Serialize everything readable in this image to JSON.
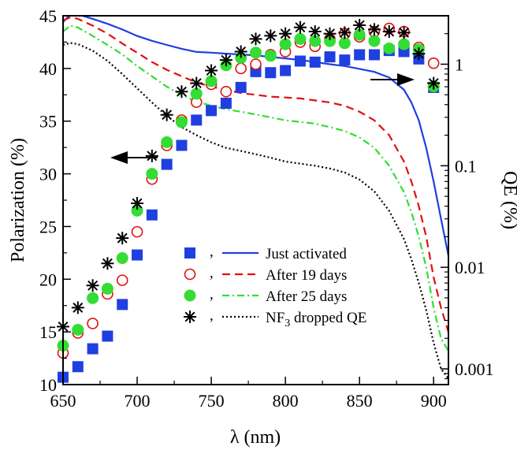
{
  "chart_data": {
    "type": "scatter",
    "xlabel": "λ (nm)",
    "ylabel_left": "Polarization (%)",
    "ylabel_right": "QE (%)",
    "xlim": [
      650,
      910
    ],
    "ylim_left": [
      10,
      45
    ],
    "ylim_right": [
      0.0007,
      3
    ],
    "right_axis_scale": "log",
    "x_ticks": [
      650,
      700,
      750,
      800,
      850,
      900
    ],
    "y_left_ticks": [
      10,
      15,
      20,
      25,
      30,
      35,
      40,
      45
    ],
    "y_right_ticks": [
      {
        "value": 0.001,
        "label": "0.001"
      },
      {
        "value": 0.01,
        "label": "0.01"
      },
      {
        "value": 0.1,
        "label": "0.1"
      },
      {
        "value": 1,
        "label": "1"
      }
    ],
    "legend": {
      "placement": "lower-right",
      "entries": [
        {
          "marker": "filled-square",
          "line": "solid",
          "separator": ",",
          "label": "Just activated"
        },
        {
          "marker": "open-circle",
          "line": "dashed",
          "separator": ",",
          "label": "After 19 days"
        },
        {
          "marker": "filled-circle",
          "line": "dash-dot",
          "separator": ",",
          "label": "After 25 days"
        },
        {
          "marker": "asterisk",
          "line": "dotted",
          "separator": ",",
          "label": "NF",
          "label_sub": "3",
          "label_suffix": " dropped QE"
        }
      ]
    },
    "annotations": [
      {
        "type": "arrow",
        "direction": "left",
        "meaning": "polarization points use left axis"
      },
      {
        "type": "arrow",
        "direction": "right",
        "meaning": "QE curves use right axis"
      }
    ],
    "polarization_series": [
      {
        "color": "#1f3fe0",
        "marker": "filled-square",
        "x": [
          650,
          660,
          670,
          680,
          690,
          700,
          710,
          720,
          730,
          740,
          750,
          760,
          770,
          780,
          790,
          800,
          810,
          820,
          830,
          840,
          850,
          860,
          870,
          880,
          890,
          900
        ],
        "y": [
          10.7,
          11.7,
          13.4,
          14.6,
          17.6,
          22.3,
          26.1,
          30.9,
          32.7,
          35.1,
          36.0,
          36.7,
          38.2,
          39.7,
          39.6,
          39.8,
          40.7,
          40.6,
          41.1,
          40.8,
          41.3,
          41.3,
          41.7,
          41.6,
          40.9,
          38.2
        ]
      },
      {
        "color": "#e01010",
        "marker": "open-circle",
        "x": [
          650,
          660,
          670,
          680,
          690,
          700,
          710,
          720,
          730,
          740,
          750,
          760,
          770,
          780,
          790,
          800,
          810,
          820,
          830,
          840,
          850,
          860,
          870,
          880,
          890,
          900
        ],
        "y": [
          13.0,
          14.9,
          15.8,
          18.6,
          19.9,
          24.5,
          29.5,
          32.7,
          35.1,
          36.8,
          38.5,
          37.8,
          40.0,
          40.4,
          41.3,
          41.6,
          42.5,
          42.1,
          42.8,
          43.3,
          43.0,
          43.5,
          43.8,
          43.5,
          42.0,
          40.5
        ]
      },
      {
        "color": "#33dd33",
        "marker": "filled-circle",
        "x": [
          650,
          660,
          670,
          680,
          690,
          700,
          710,
          720,
          730,
          740,
          750,
          760,
          770,
          780,
          790,
          800,
          810,
          820,
          830,
          840,
          850,
          860,
          870,
          880,
          890,
          900
        ],
        "y": [
          13.7,
          15.2,
          18.2,
          19.1,
          22.0,
          26.5,
          30.0,
          33.0,
          34.9,
          37.6,
          38.8,
          40.3,
          41.0,
          41.5,
          41.2,
          42.3,
          42.8,
          42.6,
          42.6,
          42.4,
          43.2,
          42.6,
          41.9,
          42.3,
          41.8,
          38.3
        ]
      },
      {
        "color": "#000000",
        "marker": "asterisk",
        "x": [
          650,
          660,
          670,
          680,
          690,
          700,
          710,
          720,
          730,
          740,
          750,
          760,
          770,
          780,
          790,
          800,
          810,
          820,
          830,
          840,
          850,
          860,
          870,
          880,
          890,
          900
        ],
        "y": [
          15.5,
          17.3,
          19.4,
          21.5,
          23.9,
          27.2,
          31.7,
          35.6,
          37.8,
          38.6,
          39.8,
          40.8,
          41.6,
          42.8,
          43.1,
          43.3,
          43.9,
          43.5,
          43.3,
          43.4,
          44.1,
          43.7,
          43.5,
          43.4,
          41.4,
          38.6
        ]
      }
    ],
    "qe_series": [
      {
        "color": "#1f3fe0",
        "line": "solid",
        "x": [
          650,
          655,
          660,
          670,
          680,
          690,
          700,
          710,
          720,
          730,
          740,
          750,
          760,
          770,
          780,
          790,
          800,
          810,
          820,
          830,
          840,
          850,
          860,
          870,
          880,
          885,
          890,
          895,
          900,
          905,
          910
        ],
        "y": [
          2.6,
          3.1,
          3.1,
          2.8,
          2.5,
          2.2,
          1.9,
          1.7,
          1.55,
          1.42,
          1.32,
          1.3,
          1.27,
          1.25,
          1.22,
          1.18,
          1.14,
          1.1,
          1.05,
          1.0,
          0.96,
          0.9,
          0.84,
          0.74,
          0.56,
          0.42,
          0.28,
          0.15,
          0.07,
          0.03,
          0.013
        ]
      },
      {
        "color": "#e01010",
        "line": "dashed",
        "x": [
          650,
          655,
          660,
          670,
          680,
          690,
          700,
          710,
          720,
          730,
          740,
          750,
          760,
          770,
          780,
          790,
          800,
          810,
          820,
          830,
          840,
          850,
          860,
          870,
          880,
          885,
          890,
          895,
          900,
          905,
          910
        ],
        "y": [
          2.7,
          2.9,
          2.8,
          2.4,
          2.0,
          1.6,
          1.3,
          1.05,
          0.88,
          0.76,
          0.66,
          0.6,
          0.56,
          0.52,
          0.5,
          0.48,
          0.47,
          0.46,
          0.44,
          0.42,
          0.39,
          0.34,
          0.28,
          0.2,
          0.11,
          0.07,
          0.04,
          0.02,
          0.008,
          0.004,
          0.0023
        ]
      },
      {
        "color": "#33dd33",
        "line": "dash-dot",
        "x": [
          650,
          655,
          660,
          670,
          680,
          690,
          700,
          710,
          720,
          730,
          740,
          750,
          760,
          770,
          780,
          790,
          800,
          810,
          820,
          830,
          840,
          850,
          860,
          870,
          880,
          885,
          890,
          895,
          900,
          905,
          910
        ],
        "y": [
          2.1,
          2.4,
          2.3,
          1.9,
          1.55,
          1.25,
          0.96,
          0.76,
          0.6,
          0.5,
          0.43,
          0.39,
          0.36,
          0.34,
          0.32,
          0.3,
          0.28,
          0.27,
          0.26,
          0.24,
          0.22,
          0.19,
          0.15,
          0.1,
          0.055,
          0.035,
          0.02,
          0.01,
          0.004,
          0.002,
          0.0015
        ]
      },
      {
        "color": "#000000",
        "line": "dotted",
        "x": [
          650,
          655,
          660,
          670,
          680,
          690,
          700,
          710,
          720,
          730,
          740,
          750,
          760,
          770,
          780,
          790,
          800,
          810,
          820,
          830,
          840,
          850,
          860,
          870,
          880,
          885,
          890,
          895,
          900,
          905,
          910
        ],
        "y": [
          1.55,
          1.62,
          1.58,
          1.36,
          1.08,
          0.8,
          0.58,
          0.42,
          0.31,
          0.24,
          0.2,
          0.17,
          0.15,
          0.14,
          0.13,
          0.12,
          0.11,
          0.105,
          0.1,
          0.094,
          0.086,
          0.073,
          0.056,
          0.036,
          0.019,
          0.012,
          0.007,
          0.0038,
          0.0018,
          0.001,
          0.0008
        ]
      }
    ]
  }
}
